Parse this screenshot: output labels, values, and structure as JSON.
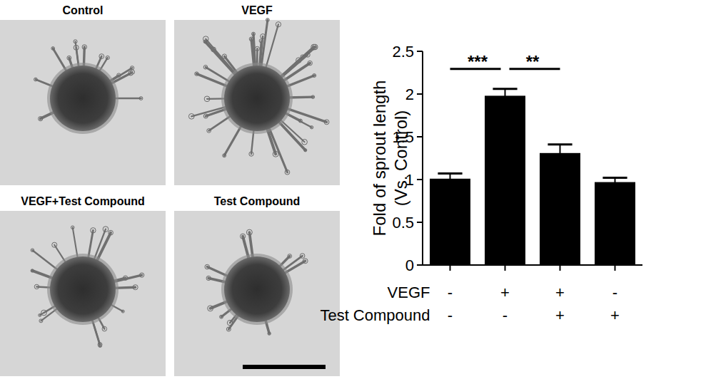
{
  "chart_data": {
    "type": "bar",
    "y_label": [
      "Fold of sprout length",
      "(Vs. Control)"
    ],
    "categories": [
      null,
      null,
      null,
      null
    ],
    "values": [
      1.01,
      1.98,
      1.31,
      0.97
    ],
    "errors": [
      0.06,
      0.08,
      0.1,
      0.05
    ],
    "color": "#000000",
    "ylim": [
      0,
      2.5
    ],
    "yticks": [
      0,
      0.5,
      1,
      1.5,
      2,
      2.5
    ],
    "grid": false,
    "annotations": [
      {
        "text": "***",
        "from": 0,
        "to": 1
      },
      {
        "text": "**",
        "from": 1,
        "to": 2
      }
    ]
  },
  "conditions": [
    {
      "label": "VEGF",
      "signs": [
        "-",
        "+",
        "+",
        "-"
      ]
    },
    {
      "label": "Test Compound",
      "signs": [
        "-",
        "-",
        "+",
        "+"
      ]
    }
  ],
  "panels": [
    "Control",
    "VEGF",
    "VEGF+Test Compound",
    "Test Compound"
  ]
}
